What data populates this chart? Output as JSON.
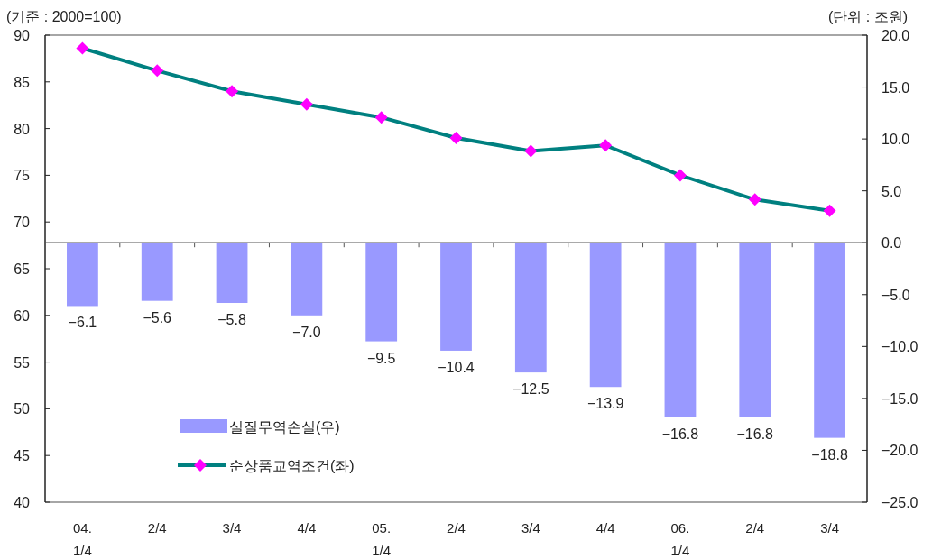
{
  "chart_data": {
    "type": "bar",
    "ylabel": "(기준 : 2000=100)",
    "y2label": "(단위 : 조원)",
    "categories": [
      "04.\n1/4",
      "2/4",
      "3/4",
      "4/4",
      "05.\n1/4",
      "2/4",
      "3/4",
      "4/4",
      "06.\n1/4",
      "2/4",
      "3/4"
    ],
    "series": [
      {
        "name": "실질무역손실(우)",
        "axis": "y2",
        "color": "#9999ff",
        "values": [
          -6.1,
          -5.6,
          -5.8,
          -7.0,
          -9.5,
          -10.4,
          -12.5,
          -13.9,
          -16.8,
          -16.8,
          -18.8
        ],
        "value_labels": [
          "−6.1",
          "−5.6",
          "−5.8",
          "−7.0",
          "−9.5",
          "−10.4",
          "−12.5",
          "−13.9",
          "−16.8",
          "−16.8",
          "−18.8"
        ]
      },
      {
        "name": "순상품교역조건(좌)",
        "type": "line",
        "axis": "y",
        "color": "#008080",
        "colors": [
          "#ff00ff",
          "#ff00ff",
          "#ff00ff",
          "#ff00ff",
          "#ff00ff",
          "#ff00ff",
          "#ff00ff",
          "#ff00ff",
          "#ff00ff",
          "#ff00ff",
          "#ff00ff"
        ],
        "values": [
          88.6,
          86.2,
          84.0,
          82.6,
          81.2,
          79.0,
          77.6,
          78.2,
          75.0,
          72.4,
          71.2
        ]
      }
    ],
    "ylim": [
      40,
      90
    ],
    "yticks": [
      40,
      45,
      50,
      55,
      60,
      65,
      70,
      75,
      80,
      85,
      90
    ],
    "y2lim": [
      -25,
      20
    ],
    "y2ticks": [
      {
        "value": -25,
        "label": "−25.0"
      },
      {
        "value": -20,
        "label": "−20.0"
      },
      {
        "value": -15,
        "label": "−15.0"
      },
      {
        "value": -10,
        "label": "−10.0"
      },
      {
        "value": -5,
        "label": "−5.0"
      },
      {
        "value": 0,
        "label": "0.0"
      },
      {
        "value": 5,
        "label": "5.0"
      },
      {
        "value": 10,
        "label": "10.0"
      },
      {
        "value": 15,
        "label": "15.0"
      },
      {
        "value": 20,
        "label": "20.0"
      }
    ],
    "legend": "bottom left",
    "marker": "diamond",
    "line_style": "solid"
  }
}
